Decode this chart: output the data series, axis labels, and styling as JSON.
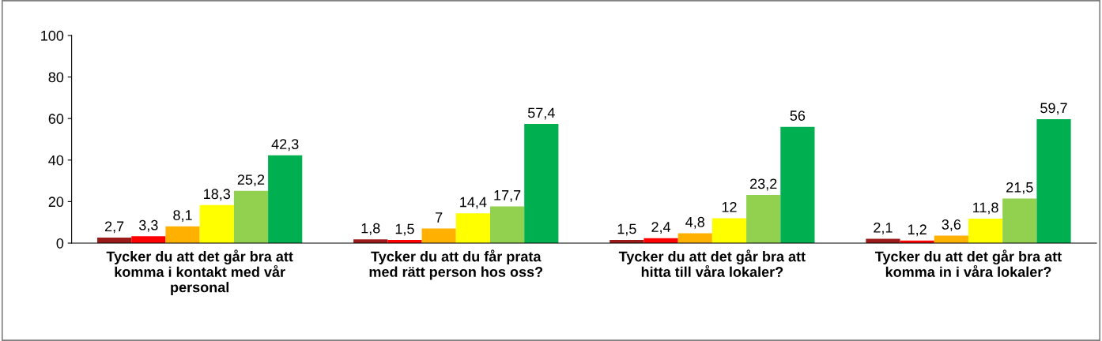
{
  "chart_data": {
    "type": "bar",
    "categories": [
      "Tycker du att det går bra att komma i kontakt med vår personal",
      "Tycker du att du får prata med rätt person hos oss?",
      "Tycker du att det går bra att hitta till våra lokaler?",
      "Tycker du att det går bra att komma in i våra lokaler?"
    ],
    "series": [
      {
        "color": "#9b1b1b",
        "values": [
          2.7,
          1.8,
          1.5,
          2.1
        ],
        "value_labels": [
          "2,7",
          "1,8",
          "1,5",
          "2,1"
        ]
      },
      {
        "color": "#ff0000",
        "values": [
          3.3,
          1.5,
          2.4,
          1.2
        ],
        "value_labels": [
          "3,3",
          "1,5",
          "2,4",
          "1,2"
        ]
      },
      {
        "color": "#ffb000",
        "values": [
          8.1,
          7,
          4.8,
          3.6
        ],
        "value_labels": [
          "8,1",
          "7",
          "4,8",
          "3,6"
        ]
      },
      {
        "color": "#ffff00",
        "values": [
          18.3,
          14.4,
          12,
          11.8
        ],
        "value_labels": [
          "18,3",
          "14,4",
          "12",
          "11,8"
        ]
      },
      {
        "color": "#92d050",
        "values": [
          25.2,
          17.7,
          23.2,
          21.5
        ],
        "value_labels": [
          "25,2",
          "17,7",
          "23,2",
          "21,5"
        ]
      },
      {
        "color": "#00b050",
        "values": [
          42.3,
          57.4,
          56,
          59.7
        ],
        "value_labels": [
          "42,3",
          "57,4",
          "56",
          "59,7"
        ]
      }
    ],
    "ylim": [
      0,
      100
    ],
    "yticks": [
      0,
      20,
      40,
      60,
      80,
      100
    ],
    "grid": false,
    "legend": false
  }
}
